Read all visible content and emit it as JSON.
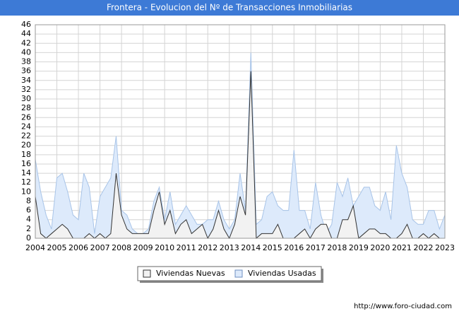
{
  "chart_data": {
    "type": "area",
    "title": "Frontera - Evolucion del Nº de Transacciones Inmobiliarias",
    "source": "http://www.foro-ciudad.com",
    "x": [
      2004,
      2004.25,
      2004.5,
      2004.75,
      2005,
      2005.25,
      2005.5,
      2005.75,
      2006,
      2006.25,
      2006.5,
      2006.75,
      2007,
      2007.25,
      2007.5,
      2007.75,
      2008,
      2008.25,
      2008.5,
      2008.75,
      2009,
      2009.25,
      2009.5,
      2009.75,
      2010,
      2010.25,
      2010.5,
      2010.75,
      2011,
      2011.25,
      2011.5,
      2011.75,
      2012,
      2012.25,
      2012.5,
      2012.75,
      2013,
      2013.25,
      2013.5,
      2013.75,
      2014,
      2014.25,
      2014.5,
      2014.75,
      2015,
      2015.25,
      2015.5,
      2015.75,
      2016,
      2016.25,
      2016.5,
      2016.75,
      2017,
      2017.25,
      2017.5,
      2017.75,
      2018,
      2018.25,
      2018.5,
      2018.75,
      2019,
      2019.25,
      2019.5,
      2019.75,
      2020,
      2020.25,
      2020.5,
      2020.75,
      2021,
      2021.25,
      2021.5,
      2021.75,
      2022,
      2022.25,
      2022.5,
      2022.75,
      2023
    ],
    "series": [
      {
        "name": "Viviendas Usadas",
        "color": "#a8c4e8",
        "fill": "#ddeafb",
        "values": [
          17,
          10,
          5,
          2,
          13,
          14,
          10,
          5,
          4,
          14,
          11,
          1,
          9,
          11,
          13,
          22,
          6,
          5,
          2,
          1,
          1,
          2,
          8,
          11,
          4,
          10,
          3,
          5,
          7,
          5,
          3,
          3,
          4,
          4,
          8,
          4,
          2,
          4,
          14,
          6,
          40,
          3,
          4,
          9,
          10,
          7,
          6,
          6,
          19,
          6,
          6,
          2,
          12,
          5,
          1,
          3,
          12,
          9,
          13,
          7,
          9,
          11,
          11,
          7,
          6,
          10,
          4,
          20,
          14,
          11,
          4,
          3,
          3,
          6,
          6,
          2,
          5
        ]
      },
      {
        "name": "Viviendas Nuevas",
        "color": "#333333",
        "fill": "#f2f2f2",
        "values": [
          9,
          1,
          0,
          1,
          2,
          3,
          2,
          0,
          0,
          0,
          1,
          0,
          1,
          0,
          1,
          14,
          5,
          2,
          1,
          1,
          1,
          1,
          6,
          10,
          3,
          6,
          1,
          3,
          4,
          1,
          2,
          3,
          0,
          2,
          6,
          2,
          0,
          3,
          9,
          5,
          36,
          0,
          1,
          1,
          1,
          3,
          0,
          0,
          0,
          1,
          2,
          0,
          2,
          3,
          3,
          0,
          0,
          4,
          4,
          7,
          0,
          1,
          2,
          2,
          1,
          1,
          0,
          0,
          1,
          3,
          0,
          0,
          1,
          0,
          1,
          0,
          0
        ]
      }
    ],
    "xlim": [
      2004,
      2023
    ],
    "xticks": [
      2004,
      2005,
      2006,
      2007,
      2008,
      2009,
      2010,
      2011,
      2012,
      2013,
      2014,
      2015,
      2016,
      2017,
      2018,
      2019,
      2020,
      2021,
      2022,
      2023
    ],
    "ylim": [
      0,
      46
    ],
    "yticks": [
      0,
      2,
      4,
      6,
      8,
      10,
      12,
      14,
      16,
      18,
      20,
      22,
      24,
      26,
      28,
      30,
      32,
      34,
      36,
      38,
      40,
      42,
      44,
      46
    ],
    "grid": true
  }
}
